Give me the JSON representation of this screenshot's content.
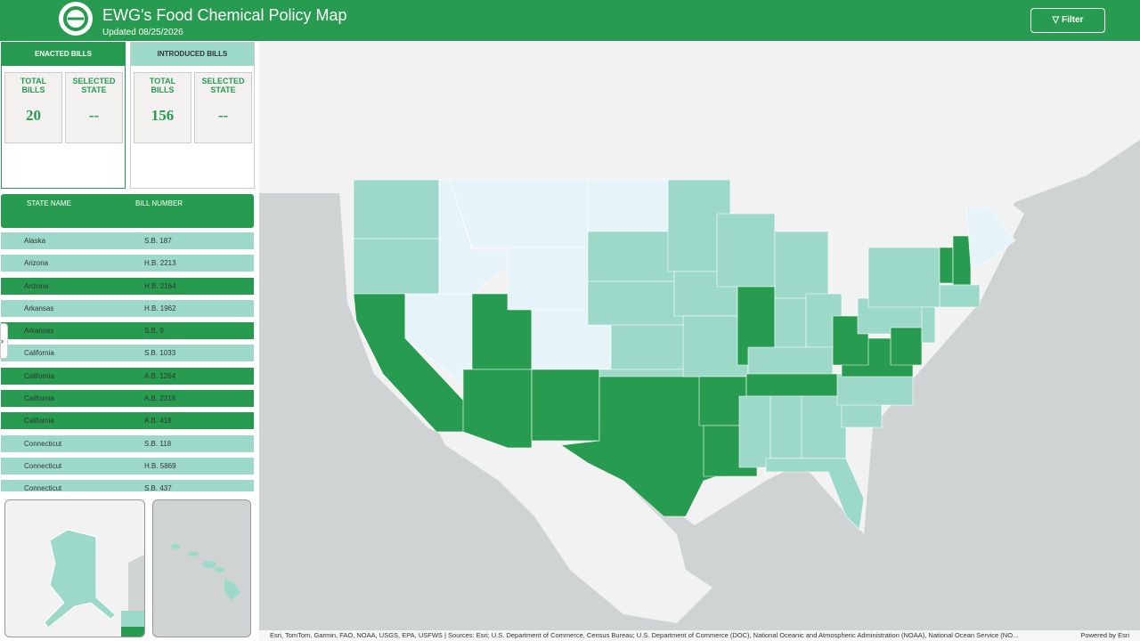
{
  "header": {
    "title": "EWG's Food Chemical Policy Map",
    "updated": "Updated 08/25/2026"
  },
  "filter_button": "Filter",
  "panels": [
    {
      "heading": "ENACTED BILLS",
      "total_label": "TOTAL BILLS",
      "total": 20,
      "selected_label": "SELECTED STATE",
      "selected": "--"
    },
    {
      "heading": "INTRODUCED BILLS",
      "total_label": "TOTAL BILLS",
      "total": 156,
      "selected_label": "SELECTED STATE",
      "selected": "--"
    }
  ],
  "table": {
    "columns": [
      "STATE NAME",
      "BILL NUMBER"
    ],
    "rows": [
      {
        "state": "Alaska",
        "bill": "S.B. 187",
        "color": "#9dd9c8"
      },
      {
        "state": "Arizona",
        "bill": "H.B. 2213",
        "color": "#9dd9c8"
      },
      {
        "state": "Arizona",
        "bill": "H.B. 2164",
        "color": "#279b4f"
      },
      {
        "state": "Arkansas",
        "bill": "H.B. 1962",
        "color": "#9dd9c8"
      },
      {
        "state": "Arkansas",
        "bill": "S.B. 9",
        "color": "#279b4f"
      },
      {
        "state": "California",
        "bill": "S.B. 1033",
        "color": "#9dd9c8"
      },
      {
        "state": "California",
        "bill": "A.B. 1264",
        "color": "#279b4f"
      },
      {
        "state": "California",
        "bill": "A.B. 2316",
        "color": "#279b4f"
      },
      {
        "state": "California",
        "bill": "A.B. 418",
        "color": "#279b4f"
      },
      {
        "state": "Connecticut",
        "bill": "S.B. 118",
        "color": "#9dd9c8"
      },
      {
        "state": "Connecticut",
        "bill": "H.B. 5869",
        "color": "#9dd9c8"
      },
      {
        "state": "Connecticut",
        "bill": "S.B. 437",
        "color": "#9dd9c8"
      }
    ]
  },
  "attribution": "Esri, TomTom, Garmin, FAO, NOAA, USGS, EPA, USFWS | Sources: Esri; U.S. Department of Commerce, Census Bureau; U.S. Department of Commerce (DOC), National Oceanic and Atmospheric Administration (NOAA), National Ocean Service (NO...",
  "powered_by": "Powered by Esri"
}
